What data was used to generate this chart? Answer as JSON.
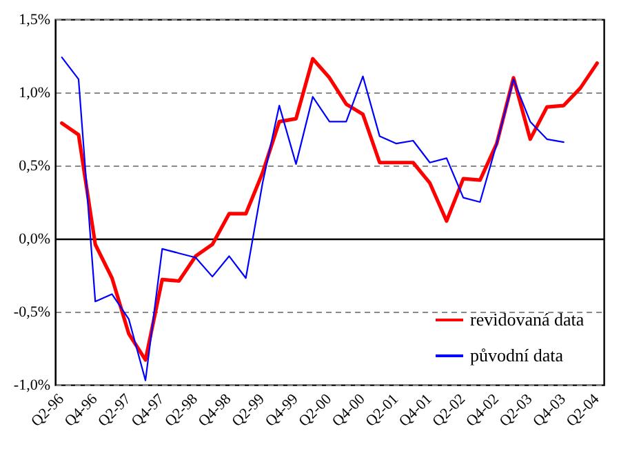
{
  "chart_data": {
    "type": "line",
    "categories": [
      "Q2-96",
      null,
      "Q4-96",
      null,
      "Q2-97",
      null,
      "Q4-97",
      null,
      "Q2-98",
      null,
      "Q4-98",
      null,
      "Q2-99",
      null,
      "Q4-99",
      null,
      "Q2-00",
      null,
      "Q4-00",
      null,
      "Q2-01",
      null,
      "Q4-01",
      null,
      "Q2-02",
      null,
      "Q4-02",
      null,
      "Q2-03",
      null,
      "Q4-03",
      null,
      "Q2-04"
    ],
    "series": [
      {
        "name": "revidovaná data",
        "color": "#ff0000",
        "values": [
          0.79,
          0.71,
          -0.04,
          -0.27,
          -0.65,
          -0.83,
          -0.28,
          -0.29,
          -0.12,
          -0.04,
          0.17,
          0.17,
          0.45,
          0.8,
          0.82,
          1.23,
          1.1,
          0.92,
          0.85,
          0.52,
          0.52,
          0.52,
          0.38,
          0.12,
          0.41,
          0.4,
          0.65,
          1.1,
          0.68,
          0.9,
          0.91,
          1.03,
          1.2
        ]
      },
      {
        "name": "původní data",
        "color": "#0000ff",
        "values": [
          1.24,
          1.09,
          -0.43,
          -0.38,
          -0.55,
          -0.97,
          -0.07,
          -0.1,
          -0.13,
          -0.26,
          -0.12,
          -0.27,
          0.38,
          0.91,
          0.51,
          0.97,
          0.8,
          0.8,
          1.11,
          0.7,
          0.65,
          0.67,
          0.52,
          0.55,
          0.28,
          0.25,
          0.65,
          1.09,
          0.8,
          0.68,
          0.66,
          null,
          null
        ]
      }
    ],
    "ylim": [
      -1.0,
      1.5
    ],
    "yticks": [
      {
        "value": -1.0,
        "label": "-1,0%"
      },
      {
        "value": -0.5,
        "label": "-0,5%"
      },
      {
        "value": 0,
        "label": "0,0%"
      },
      {
        "value": 0.5,
        "label": "0,5%"
      },
      {
        "value": 1.0,
        "label": "1,0%"
      },
      {
        "value": 1.5,
        "label": "1,5%"
      }
    ],
    "grid": "y",
    "legend": "bottom right",
    "line_style": "solid",
    "marker": "none"
  }
}
